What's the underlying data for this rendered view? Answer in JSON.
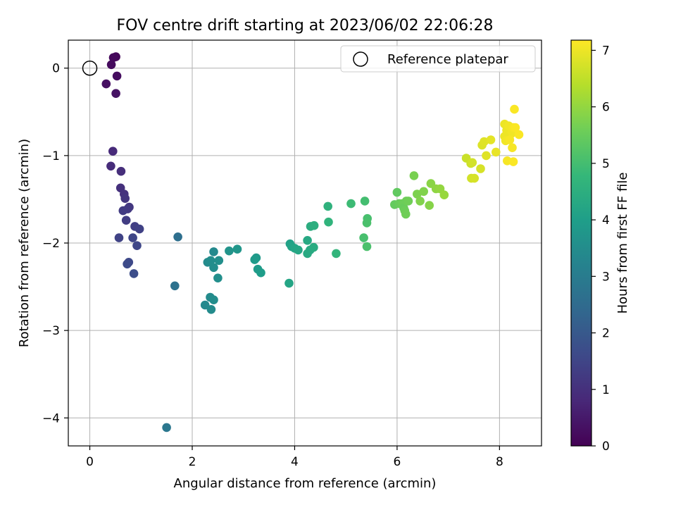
{
  "chart_data": {
    "type": "scatter",
    "title": "FOV centre drift starting at 2023/06/02 22:06:28",
    "xlabel": "Angular distance from reference (arcmin)",
    "ylabel": "Rotation from reference (arcmin)",
    "xlim": [
      -0.42,
      8.82
    ],
    "ylim": [
      -4.32,
      0.32
    ],
    "xticks": [
      0,
      2,
      4,
      6,
      8
    ],
    "yticks": [
      0,
      -1,
      -2,
      -3,
      -4
    ],
    "grid": true,
    "legend": {
      "placement": "top-right",
      "entries": [
        "Reference platepar"
      ]
    },
    "colorbar": {
      "label": "Hours from first FF file",
      "range": [
        0,
        7.18
      ],
      "ticks": [
        0,
        1,
        2,
        3,
        4,
        5,
        6,
        7
      ],
      "colormap": "viridis",
      "colormap_stops": [
        "#440154",
        "#482878",
        "#3e4989",
        "#31688e",
        "#26828e",
        "#1f9e89",
        "#35b779",
        "#6ece58",
        "#b5de2b",
        "#fde725"
      ]
    },
    "reference_point": {
      "x": 0,
      "y": 0
    },
    "points": [
      [
        0.51,
        0.13,
        0.1
      ],
      [
        0.46,
        0.12,
        0.15
      ],
      [
        0.42,
        0.04,
        0.2
      ],
      [
        0.53,
        -0.09,
        0.25
      ],
      [
        0.32,
        -0.18,
        0.3
      ],
      [
        0.51,
        -0.29,
        0.35
      ],
      [
        0.45,
        -0.95,
        0.85
      ],
      [
        0.41,
        -1.12,
        0.9
      ],
      [
        0.61,
        -1.18,
        0.95
      ],
      [
        0.6,
        -1.37,
        1.0
      ],
      [
        0.67,
        -1.44,
        1.05
      ],
      [
        0.69,
        -1.49,
        1.1
      ],
      [
        0.77,
        -1.59,
        1.15
      ],
      [
        0.74,
        -1.61,
        1.2
      ],
      [
        0.65,
        -1.63,
        1.25
      ],
      [
        0.71,
        -1.74,
        1.3
      ],
      [
        0.88,
        -1.81,
        1.35
      ],
      [
        0.97,
        -1.84,
        1.4
      ],
      [
        0.57,
        -1.94,
        1.45
      ],
      [
        0.84,
        -1.94,
        1.5
      ],
      [
        0.92,
        -2.03,
        1.55
      ],
      [
        0.76,
        -2.22,
        1.6
      ],
      [
        0.73,
        -2.24,
        1.65
      ],
      [
        0.86,
        -2.35,
        1.7
      ],
      [
        1.72,
        -1.93,
        2.6
      ],
      [
        1.66,
        -2.49,
        2.7
      ],
      [
        1.5,
        -4.11,
        2.85
      ],
      [
        2.42,
        -2.1,
        3.4
      ],
      [
        2.3,
        -2.22,
        3.45
      ],
      [
        2.36,
        -2.2,
        3.5
      ],
      [
        2.52,
        -2.2,
        3.55
      ],
      [
        2.42,
        -2.28,
        3.5
      ],
      [
        2.5,
        -2.4,
        3.55
      ],
      [
        2.35,
        -2.62,
        3.45
      ],
      [
        2.42,
        -2.65,
        3.5
      ],
      [
        2.25,
        -2.71,
        3.4
      ],
      [
        2.37,
        -2.76,
        3.45
      ],
      [
        2.72,
        -2.09,
        3.7
      ],
      [
        2.88,
        -2.07,
        3.75
      ],
      [
        3.25,
        -2.17,
        3.85
      ],
      [
        3.22,
        -2.19,
        3.9
      ],
      [
        3.28,
        -2.3,
        3.9
      ],
      [
        3.34,
        -2.34,
        3.95
      ],
      [
        3.91,
        -2.01,
        4.1
      ],
      [
        3.94,
        -2.04,
        4.15
      ],
      [
        4.0,
        -2.06,
        4.2
      ],
      [
        4.07,
        -2.08,
        4.25
      ],
      [
        4.25,
        -1.97,
        4.3
      ],
      [
        4.3,
        -2.08,
        4.35
      ],
      [
        4.25,
        -2.12,
        4.35
      ],
      [
        4.37,
        -2.05,
        4.4
      ],
      [
        4.31,
        -1.81,
        4.45
      ],
      [
        4.38,
        -1.8,
        4.5
      ],
      [
        3.89,
        -2.46,
        4.2
      ],
      [
        4.65,
        -1.58,
        4.6
      ],
      [
        4.66,
        -1.76,
        4.65
      ],
      [
        4.81,
        -2.12,
        4.7
      ],
      [
        5.1,
        -1.55,
        4.9
      ],
      [
        5.37,
        -1.52,
        5.0
      ],
      [
        5.42,
        -1.72,
        5.05
      ],
      [
        5.41,
        -1.77,
        5.1
      ],
      [
        5.35,
        -1.94,
        5.05
      ],
      [
        5.41,
        -2.04,
        5.1
      ],
      [
        6.0,
        -1.42,
        5.4
      ],
      [
        5.95,
        -1.56,
        5.45
      ],
      [
        6.04,
        -1.55,
        5.5
      ],
      [
        6.1,
        -1.55,
        5.55
      ],
      [
        6.13,
        -1.6,
        5.5
      ],
      [
        6.18,
        -1.52,
        5.55
      ],
      [
        6.22,
        -1.52,
        5.6
      ],
      [
        6.15,
        -1.63,
        5.55
      ],
      [
        6.17,
        -1.67,
        5.6
      ],
      [
        6.33,
        -1.23,
        5.7
      ],
      [
        6.39,
        -1.44,
        5.75
      ],
      [
        6.45,
        -1.52,
        5.8
      ],
      [
        6.52,
        -1.41,
        5.8
      ],
      [
        6.63,
        -1.57,
        5.85
      ],
      [
        6.66,
        -1.32,
        5.9
      ],
      [
        6.76,
        -1.38,
        5.95
      ],
      [
        6.84,
        -1.38,
        6.0
      ],
      [
        6.92,
        -1.45,
        6.05
      ],
      [
        7.35,
        -1.03,
        6.6
      ],
      [
        7.44,
        -1.09,
        6.65
      ],
      [
        7.45,
        -1.26,
        6.7
      ],
      [
        7.51,
        -1.26,
        6.75
      ],
      [
        7.47,
        -1.08,
        6.7
      ],
      [
        7.63,
        -1.15,
        6.75
      ],
      [
        7.66,
        -0.88,
        6.8
      ],
      [
        7.7,
        -0.84,
        6.85
      ],
      [
        7.74,
        -1.0,
        6.85
      ],
      [
        7.83,
        -0.82,
        6.9
      ],
      [
        7.93,
        -0.96,
        6.95
      ],
      [
        8.1,
        -0.64,
        7.0
      ],
      [
        8.14,
        -0.71,
        7.0
      ],
      [
        8.18,
        -0.66,
        7.05
      ],
      [
        8.23,
        -0.75,
        7.05
      ],
      [
        8.1,
        -0.78,
        7.0
      ],
      [
        8.12,
        -0.83,
        7.05
      ],
      [
        8.2,
        -0.82,
        7.1
      ],
      [
        8.25,
        -0.91,
        7.1
      ],
      [
        8.27,
        -0.68,
        7.1
      ],
      [
        8.29,
        -0.47,
        7.15
      ],
      [
        8.31,
        -0.68,
        7.15
      ],
      [
        8.38,
        -0.76,
        7.15
      ],
      [
        8.15,
        -1.06,
        7.1
      ],
      [
        8.27,
        -1.07,
        7.15
      ]
    ]
  }
}
